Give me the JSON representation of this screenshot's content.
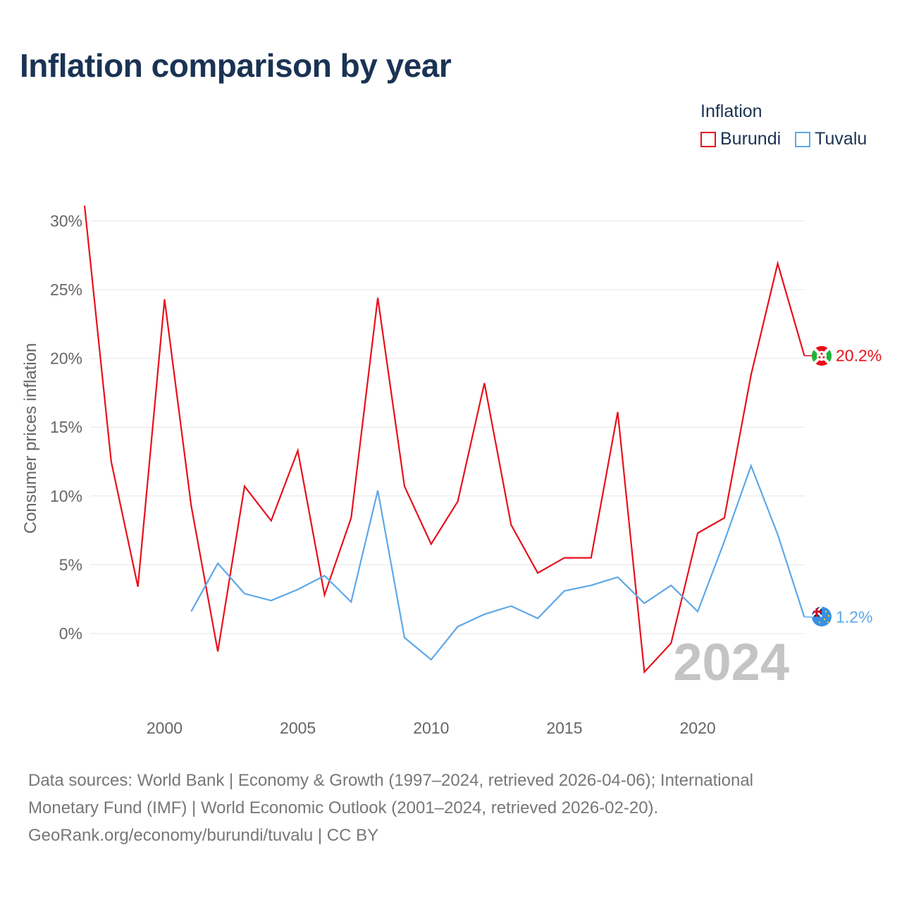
{
  "title": "Inflation comparison by year",
  "legend": {
    "title": "Inflation",
    "items": [
      {
        "name": "Burundi",
        "color": "#e8101c"
      },
      {
        "name": "Tuvalu",
        "color": "#5ea8e8"
      }
    ]
  },
  "chart_data": {
    "type": "line",
    "title": "Inflation comparison by year",
    "xlabel": "",
    "ylabel": "Consumer prices inflation",
    "xlim": [
      1997,
      2024
    ],
    "ylim": [
      -5.5,
      31
    ],
    "x_ticks": [
      2000,
      2005,
      2010,
      2015,
      2020
    ],
    "y_ticks": [
      0,
      5,
      10,
      15,
      20,
      25,
      30
    ],
    "y_tick_labels": [
      "0%",
      "5%",
      "10%",
      "15%",
      "20%",
      "25%",
      "30%"
    ],
    "grid": true,
    "year_label": "2024",
    "series": [
      {
        "name": "Burundi",
        "color": "#e8101c",
        "end_label": "20.2%",
        "flag": "burundi-flag",
        "x": [
          1997,
          1998,
          1999,
          2000,
          2001,
          2002,
          2003,
          2004,
          2005,
          2006,
          2007,
          2008,
          2009,
          2010,
          2011,
          2012,
          2013,
          2014,
          2015,
          2016,
          2017,
          2018,
          2019,
          2020,
          2021,
          2022,
          2023,
          2024
        ],
        "values": [
          31.1,
          12.5,
          3.4,
          24.3,
          9.3,
          -1.3,
          10.7,
          8.2,
          13.3,
          2.8,
          8.4,
          24.4,
          10.7,
          6.5,
          9.6,
          18.2,
          7.9,
          4.4,
          5.5,
          5.5,
          16.1,
          -2.8,
          -0.7,
          7.3,
          8.4,
          18.8,
          26.9,
          20.2
        ]
      },
      {
        "name": "Tuvalu",
        "color": "#5ea8e8",
        "end_label": "1.2%",
        "flag": "tuvalu-flag",
        "x": [
          2001,
          2002,
          2003,
          2004,
          2005,
          2006,
          2007,
          2008,
          2009,
          2010,
          2011,
          2012,
          2013,
          2014,
          2015,
          2016,
          2017,
          2018,
          2019,
          2020,
          2021,
          2022,
          2023,
          2024
        ],
        "values": [
          1.6,
          5.1,
          2.9,
          2.4,
          3.2,
          4.2,
          2.3,
          10.4,
          -0.3,
          -1.9,
          0.5,
          1.4,
          2.0,
          1.1,
          3.1,
          3.5,
          4.1,
          2.2,
          3.5,
          1.6,
          6.7,
          12.2,
          7.2,
          1.2
        ]
      }
    ]
  },
  "source": {
    "line1": "Data sources: World Bank | Economy & Growth (1997–2024, retrieved 2026-04-06); International",
    "line2": "Monetary Fund (IMF) | World Economic Outlook (2001–2024, retrieved 2026-02-20).",
    "line3": "GeoRank.org/economy/burundi/tuvalu | CC BY"
  }
}
